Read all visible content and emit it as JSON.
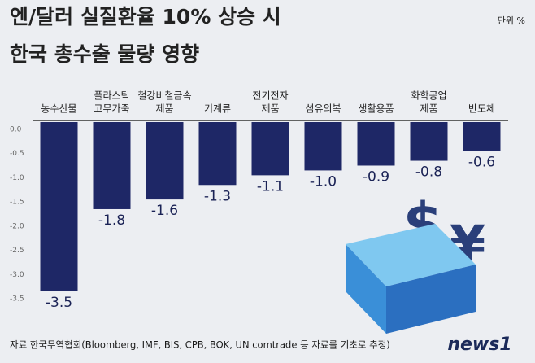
{
  "chart_data": {
    "type": "bar",
    "title": [
      "엔/달러 실질환율 10% 상승 시",
      "한국 총수출 물량 영향"
    ],
    "unit": "단위 %",
    "categories": [
      [
        "농수산물"
      ],
      [
        "플라스틱",
        "고무가죽"
      ],
      [
        "철강비철금속",
        "제품"
      ],
      [
        "기계류"
      ],
      [
        "전기전자",
        "제품"
      ],
      [
        "섬유의복"
      ],
      [
        "생활용품"
      ],
      [
        "화학공업",
        "제품"
      ],
      [
        "반도체"
      ]
    ],
    "values": [
      -3.5,
      -1.8,
      -1.6,
      -1.3,
      -1.1,
      -1.0,
      -0.9,
      -0.8,
      -0.6
    ],
    "value_labels": [
      "-3.5",
      "-1.8",
      "-1.6",
      "-1.3",
      "-1.1",
      "-1.0",
      "-0.9",
      "-0.8",
      "-0.6"
    ],
    "color": "#1e2766",
    "ylim": [
      -3.5,
      0
    ],
    "yticks": [
      {
        "value": 0,
        "label": "0.0"
      },
      -0.5,
      {
        "value": -1,
        "label": "-1.0"
      },
      -1.5,
      {
        "value": -2,
        "label": "-2.0"
      },
      -2.5,
      {
        "value": -3,
        "label": "-3.0"
      },
      -3.5
    ],
    "source": "자료 한국무역협회(Bloomberg, IMF, BIS, CPB, BOK, UN comtrade 등 자료를 기초로 추정)",
    "logo": "news1"
  }
}
